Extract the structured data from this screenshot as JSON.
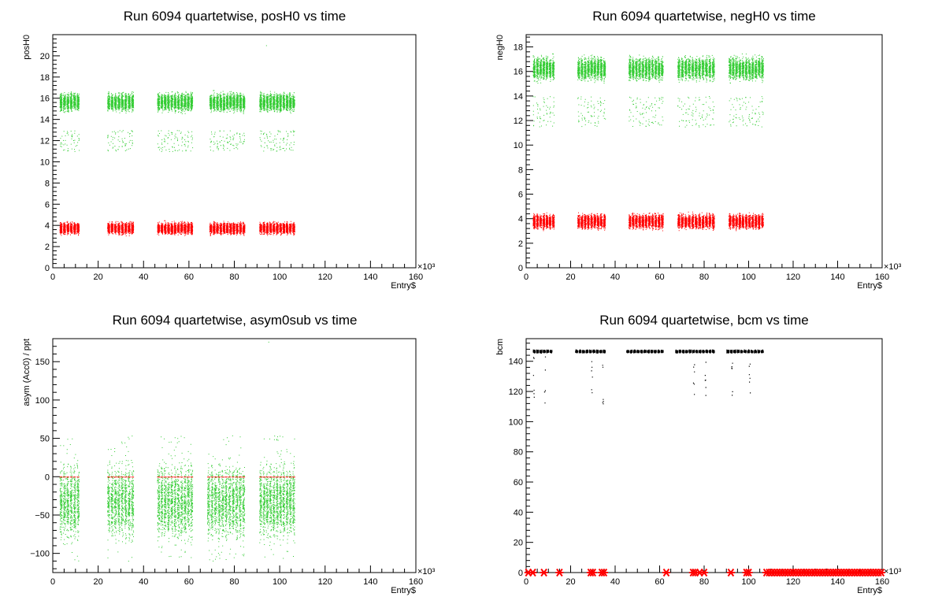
{
  "colors": {
    "green": "#33cc33",
    "red": "#ff0000",
    "black": "#000000"
  },
  "chart_data": [
    {
      "type": "scatter",
      "title": "Run 6094 quartetwise, posH0 vs time",
      "xlabel": "Entry$",
      "ylabel": "posH0",
      "x_exponent_label": "×10³",
      "xlim": [
        0,
        160
      ],
      "ylim": [
        0,
        22
      ],
      "xticks": [
        0,
        20,
        40,
        60,
        80,
        100,
        120,
        140,
        160
      ],
      "yticks": [
        0,
        2,
        4,
        6,
        8,
        10,
        12,
        14,
        16,
        18,
        20
      ],
      "grid": false,
      "segments": [
        [
          3,
          12
        ],
        [
          24,
          36
        ],
        [
          46,
          62
        ],
        [
          69,
          85
        ],
        [
          91,
          107
        ]
      ],
      "series": [
        {
          "color": "#33cc33",
          "band": [
            14.5,
            16.8
          ],
          "sparse_band": [
            11.0,
            13.0
          ]
        },
        {
          "color": "#ff0000",
          "band": [
            3.0,
            4.5
          ]
        }
      ],
      "outliers": [
        {
          "x": 94,
          "y": 21
        }
      ]
    },
    {
      "type": "scatter",
      "title": "Run 6094 quartetwise, negH0 vs time",
      "xlabel": "Entry$",
      "ylabel": "negH0",
      "x_exponent_label": "×10³",
      "xlim": [
        0,
        160
      ],
      "ylim": [
        0,
        19
      ],
      "xticks": [
        0,
        20,
        40,
        60,
        80,
        100,
        120,
        140,
        160
      ],
      "yticks": [
        0,
        2,
        4,
        6,
        8,
        10,
        12,
        14,
        16,
        18
      ],
      "grid": false,
      "segments": [
        [
          3,
          13
        ],
        [
          23,
          36
        ],
        [
          46,
          62
        ],
        [
          68,
          85
        ],
        [
          91,
          107
        ]
      ],
      "series": [
        {
          "color": "#33cc33",
          "band": [
            15.0,
            17.5
          ],
          "sparse_band": [
            11.5,
            14.0
          ]
        },
        {
          "color": "#ff0000",
          "band": [
            3.0,
            4.6
          ]
        }
      ],
      "outliers": []
    },
    {
      "type": "scatter",
      "title": "Run 6094 quartetwise, asym0sub vs time",
      "xlabel": "Entry$",
      "ylabel": "asym (Acc0) / ppt",
      "x_exponent_label": "×10³",
      "xlim": [
        0,
        160
      ],
      "ylim": [
        -125,
        180
      ],
      "xticks": [
        0,
        20,
        40,
        60,
        80,
        100,
        120,
        140,
        160
      ],
      "yticks": [
        -100,
        -50,
        0,
        50,
        100,
        150
      ],
      "grid": false,
      "segments": [
        [
          3,
          12
        ],
        [
          24,
          36
        ],
        [
          46,
          62
        ],
        [
          68,
          85
        ],
        [
          91,
          107
        ]
      ],
      "series": [
        {
          "color": "#33cc33",
          "band": [
            -95,
            30
          ],
          "sparse_band": [
            -110,
            55
          ]
        },
        {
          "color": "#ff0000",
          "band": [
            0,
            0
          ]
        }
      ],
      "outliers": [
        {
          "x": 95,
          "y": 176
        }
      ]
    },
    {
      "type": "scatter",
      "title": "Run 6094 quartetwise, bcm vs time",
      "xlabel": "Entry$",
      "ylabel": "bcm",
      "x_exponent_label": "×10³",
      "xlim": [
        0,
        160
      ],
      "ylim": [
        0,
        155
      ],
      "xticks": [
        0,
        20,
        40,
        60,
        80,
        100,
        120,
        140,
        160
      ],
      "yticks": [
        0,
        20,
        40,
        60,
        80,
        100,
        120,
        140
      ],
      "grid": false,
      "segments": [
        [
          3,
          12
        ],
        [
          22,
          36
        ],
        [
          45,
          62
        ],
        [
          67,
          85
        ],
        [
          90,
          107
        ]
      ],
      "series": [
        {
          "color": "#000000",
          "band": [
            145.5,
            148
          ],
          "dropouts_x": [
            3,
            8,
            29,
            34,
            75,
            80,
            92,
            100
          ],
          "dropout_range": [
            112,
            145
          ]
        },
        {
          "color": "#ff0000",
          "markers_x": [
            1,
            3,
            8,
            15,
            29,
            30,
            34,
            35,
            63,
            75,
            76,
            78,
            80,
            92,
            99,
            100
          ],
          "dense_range": [
            108,
            160
          ],
          "value": 0
        }
      ]
    }
  ]
}
